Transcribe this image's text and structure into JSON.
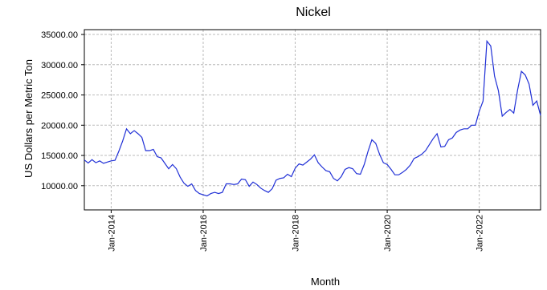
{
  "chart_data": {
    "type": "line",
    "title": "Nickel",
    "x_label": "Month",
    "y_label": "US Dollars per Metric Ton",
    "x": [
      "2013-06",
      "2013-07",
      "2013-08",
      "2013-09",
      "2013-10",
      "2013-11",
      "2013-12",
      "2014-01",
      "2014-02",
      "2014-03",
      "2014-04",
      "2014-05",
      "2014-06",
      "2014-07",
      "2014-08",
      "2014-09",
      "2014-10",
      "2014-11",
      "2014-12",
      "2015-01",
      "2015-02",
      "2015-03",
      "2015-04",
      "2015-05",
      "2015-06",
      "2015-07",
      "2015-08",
      "2015-09",
      "2015-10",
      "2015-11",
      "2015-12",
      "2016-01",
      "2016-02",
      "2016-03",
      "2016-04",
      "2016-05",
      "2016-06",
      "2016-07",
      "2016-08",
      "2016-09",
      "2016-10",
      "2016-11",
      "2016-12",
      "2017-01",
      "2017-02",
      "2017-03",
      "2017-04",
      "2017-05",
      "2017-06",
      "2017-07",
      "2017-08",
      "2017-09",
      "2017-10",
      "2017-11",
      "2017-12",
      "2018-01",
      "2018-02",
      "2018-03",
      "2018-04",
      "2018-05",
      "2018-06",
      "2018-07",
      "2018-08",
      "2018-09",
      "2018-10",
      "2018-11",
      "2018-12",
      "2019-01",
      "2019-02",
      "2019-03",
      "2019-04",
      "2019-05",
      "2019-06",
      "2019-07",
      "2019-08",
      "2019-09",
      "2019-10",
      "2019-11",
      "2019-12",
      "2020-01",
      "2020-02",
      "2020-03",
      "2020-04",
      "2020-05",
      "2020-06",
      "2020-07",
      "2020-08",
      "2020-09",
      "2020-10",
      "2020-11",
      "2020-12",
      "2021-01",
      "2021-02",
      "2021-03",
      "2021-04",
      "2021-05",
      "2021-06",
      "2021-07",
      "2021-08",
      "2021-09",
      "2021-10",
      "2021-11",
      "2021-12",
      "2022-01",
      "2022-02",
      "2022-03",
      "2022-04",
      "2022-05",
      "2022-06",
      "2022-07",
      "2022-08",
      "2022-09",
      "2022-10",
      "2022-11",
      "2022-12",
      "2023-01",
      "2023-02",
      "2023-03",
      "2023-04",
      "2023-05"
    ],
    "series": [
      {
        "name": "Nickel",
        "color": "#1f2fd6",
        "values": [
          14250,
          13750,
          14300,
          13800,
          14100,
          13700,
          13900,
          14100,
          14200,
          15700,
          17400,
          19400,
          18600,
          19100,
          18600,
          18000,
          15800,
          15800,
          16000,
          14800,
          14600,
          13700,
          12800,
          13500,
          12800,
          11400,
          10400,
          9900,
          10300,
          9200,
          8700,
          8500,
          8300,
          8700,
          8900,
          8700,
          8900,
          10300,
          10300,
          10200,
          10300,
          11100,
          11000,
          9900,
          10600,
          10200,
          9600,
          9200,
          8900,
          9500,
          10900,
          11200,
          11300,
          11900,
          11500,
          12900,
          13600,
          13400,
          13900,
          14400,
          15100,
          13800,
          13100,
          12500,
          12300,
          11200,
          10800,
          11500,
          12700,
          13000,
          12800,
          12000,
          11900,
          13500,
          15700,
          17600,
          17000,
          15200,
          13800,
          13500,
          12700,
          11800,
          11800,
          12200,
          12700,
          13400,
          14500,
          14800,
          15200,
          15800,
          16800,
          17800,
          18600,
          16400,
          16500,
          17600,
          17900,
          18800,
          19200,
          19400,
          19400,
          20000,
          20000,
          22300,
          24000,
          33900,
          33100,
          28100,
          25700,
          21500,
          22100,
          22600,
          22000,
          25800,
          28900,
          28300,
          26800,
          23300,
          24000,
          21600
        ]
      }
    ],
    "xlim": [
      "2013-06",
      "2023-05"
    ],
    "xticks": [
      {
        "value": "2014-01",
        "label": "Jan-2014"
      },
      {
        "value": "2016-01",
        "label": "Jan-2016"
      },
      {
        "value": "2018-01",
        "label": "Jan-2018"
      },
      {
        "value": "2020-01",
        "label": "Jan-2020"
      },
      {
        "value": "2022-01",
        "label": "Jan-2022"
      }
    ],
    "ylim": [
      6000,
      35800
    ],
    "yticks": [
      {
        "value": 10000,
        "label": "10000.00"
      },
      {
        "value": 15000,
        "label": "15000.00"
      },
      {
        "value": 20000,
        "label": "20000.00"
      },
      {
        "value": 25000,
        "label": "25000.00"
      },
      {
        "value": 30000,
        "label": "30000.00"
      },
      {
        "value": 35000,
        "label": "35000.00"
      }
    ],
    "grid": true
  }
}
